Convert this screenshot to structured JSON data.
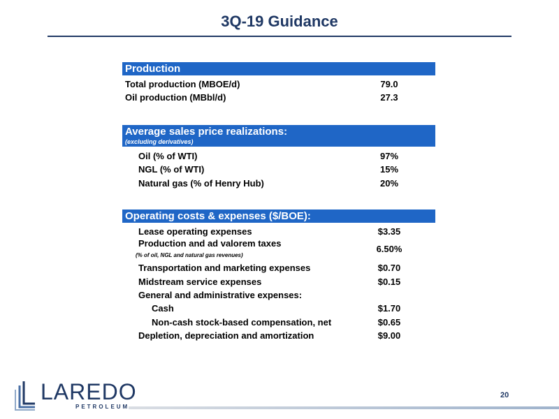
{
  "title": "3Q-19 Guidance",
  "production": {
    "header": "Production",
    "rows": [
      {
        "label": "Total production (MBOE/d)",
        "value": "79.0"
      },
      {
        "label": "Oil production (MBbl/d)",
        "value": "27.3"
      }
    ]
  },
  "prices": {
    "header": "Average sales price realizations:",
    "subheader": "(excluding derivatives)",
    "rows": [
      {
        "label": "Oil (% of WTI)",
        "value": "97%"
      },
      {
        "label": "NGL (% of WTI)",
        "value": "15%"
      },
      {
        "label": "Natural gas (% of Henry Hub)",
        "value": "20%"
      }
    ]
  },
  "costs": {
    "header": "Operating costs & expenses ($/BOE):",
    "loe": {
      "label": "Lease operating expenses",
      "value": "$3.35"
    },
    "taxes": {
      "label": "Production and ad valorem taxes",
      "note": "(% of oil, NGL and natural gas revenues)",
      "value": "6.50%"
    },
    "transport": {
      "label": "Transportation and marketing expenses",
      "value": "$0.70"
    },
    "midstream": {
      "label": "Midstream service expenses",
      "value": "$0.15"
    },
    "ga": {
      "label": "General and administrative expenses:"
    },
    "cash": {
      "label": "Cash",
      "value": "$1.70"
    },
    "noncash": {
      "label": "Non-cash stock-based compensation, net",
      "value": "$0.65"
    },
    "dda": {
      "label": "Depletion, depreciation and amortization",
      "value": "$9.00"
    }
  },
  "logo": {
    "word": "LAREDO",
    "sub": "PETROLEUM"
  },
  "page_number": "20",
  "colors": {
    "header_blue": "#1f66c6",
    "navy": "#1f3864"
  }
}
